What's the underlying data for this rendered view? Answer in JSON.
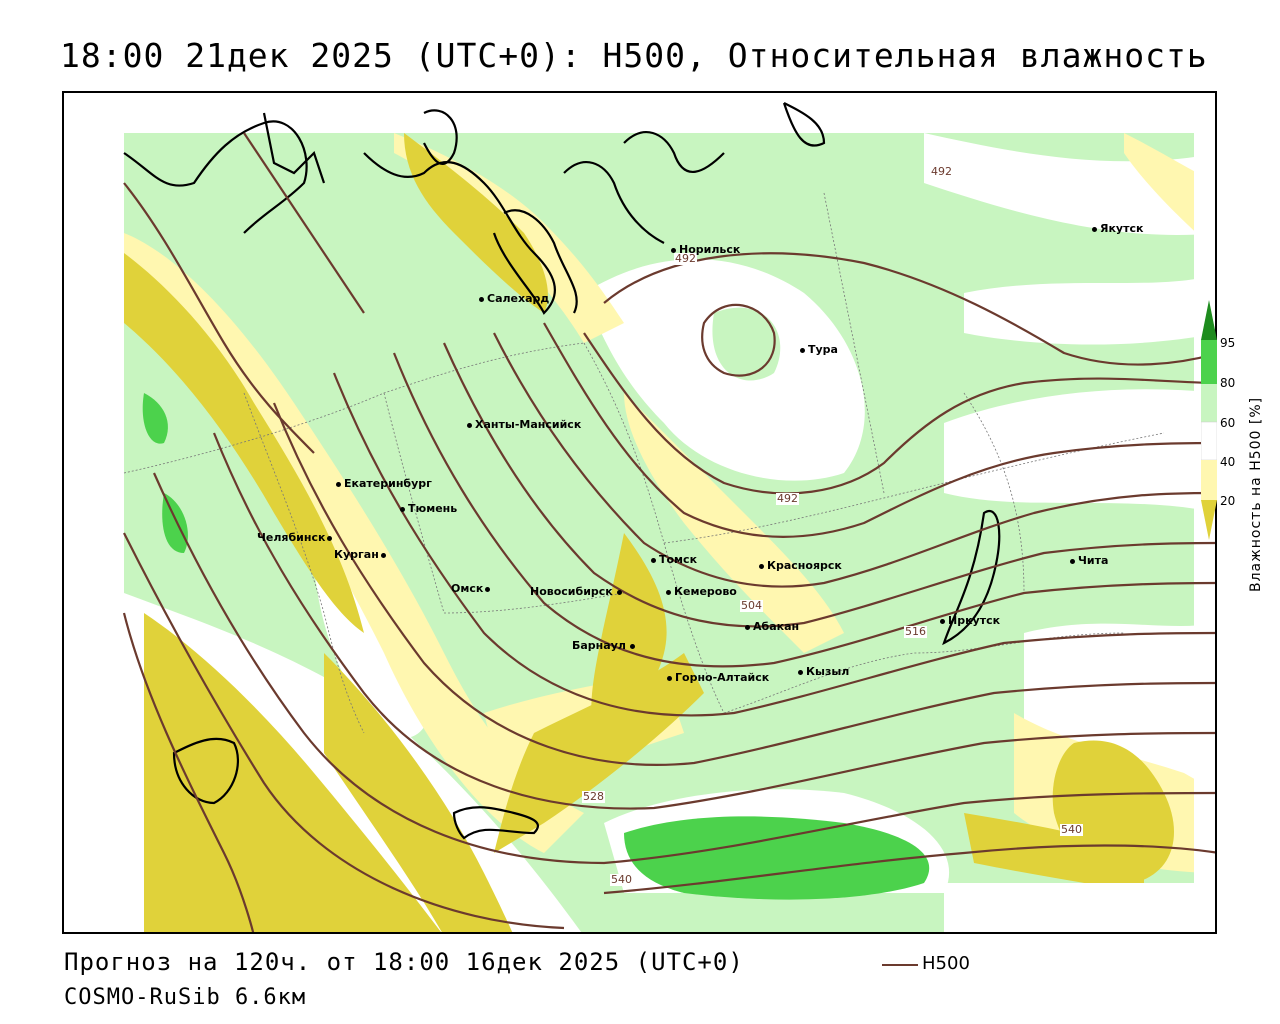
{
  "title": "18:00 21дек 2025 (UTC+0): H500, Относительная влажность",
  "footer": {
    "forecast": "Прогноз на 120ч. от 18:00 16дек 2025 (UTC+0)",
    "model": "COSMO-RuSib 6.6км"
  },
  "legend": {
    "line_label": "H500",
    "line_color": "#6b3a2e"
  },
  "colorbar": {
    "title": "Влажность на H500 [%]",
    "ticks": [
      "95",
      "80",
      "60",
      "40",
      "20"
    ],
    "colors": {
      "c20": "#e0d23a",
      "c40": "#fff7b0",
      "c60": "#ffffff",
      "c80": "#c8f5c0",
      "c95": "#4cd24c",
      "c100": "#1e8c1e"
    }
  },
  "cities": [
    {
      "name": "Норильск"
    },
    {
      "name": "Якутск"
    },
    {
      "name": "Салехард"
    },
    {
      "name": "Тура"
    },
    {
      "name": "Ханты-Мансийск"
    },
    {
      "name": "Екатеринбург"
    },
    {
      "name": "Тюмень"
    },
    {
      "name": "Челябинск"
    },
    {
      "name": "Курган"
    },
    {
      "name": "Омск"
    },
    {
      "name": "Новосибирск"
    },
    {
      "name": "Томск"
    },
    {
      "name": "Кемерово"
    },
    {
      "name": "Красноярск"
    },
    {
      "name": "Барнаул"
    },
    {
      "name": "Абакан"
    },
    {
      "name": "Иркутск"
    },
    {
      "name": "Чита"
    },
    {
      "name": "Горно-Алтайск"
    },
    {
      "name": "Кызыл"
    }
  ],
  "isohypse_labels": [
    "492",
    "492",
    "492",
    "504",
    "516",
    "528",
    "540",
    "540"
  ]
}
